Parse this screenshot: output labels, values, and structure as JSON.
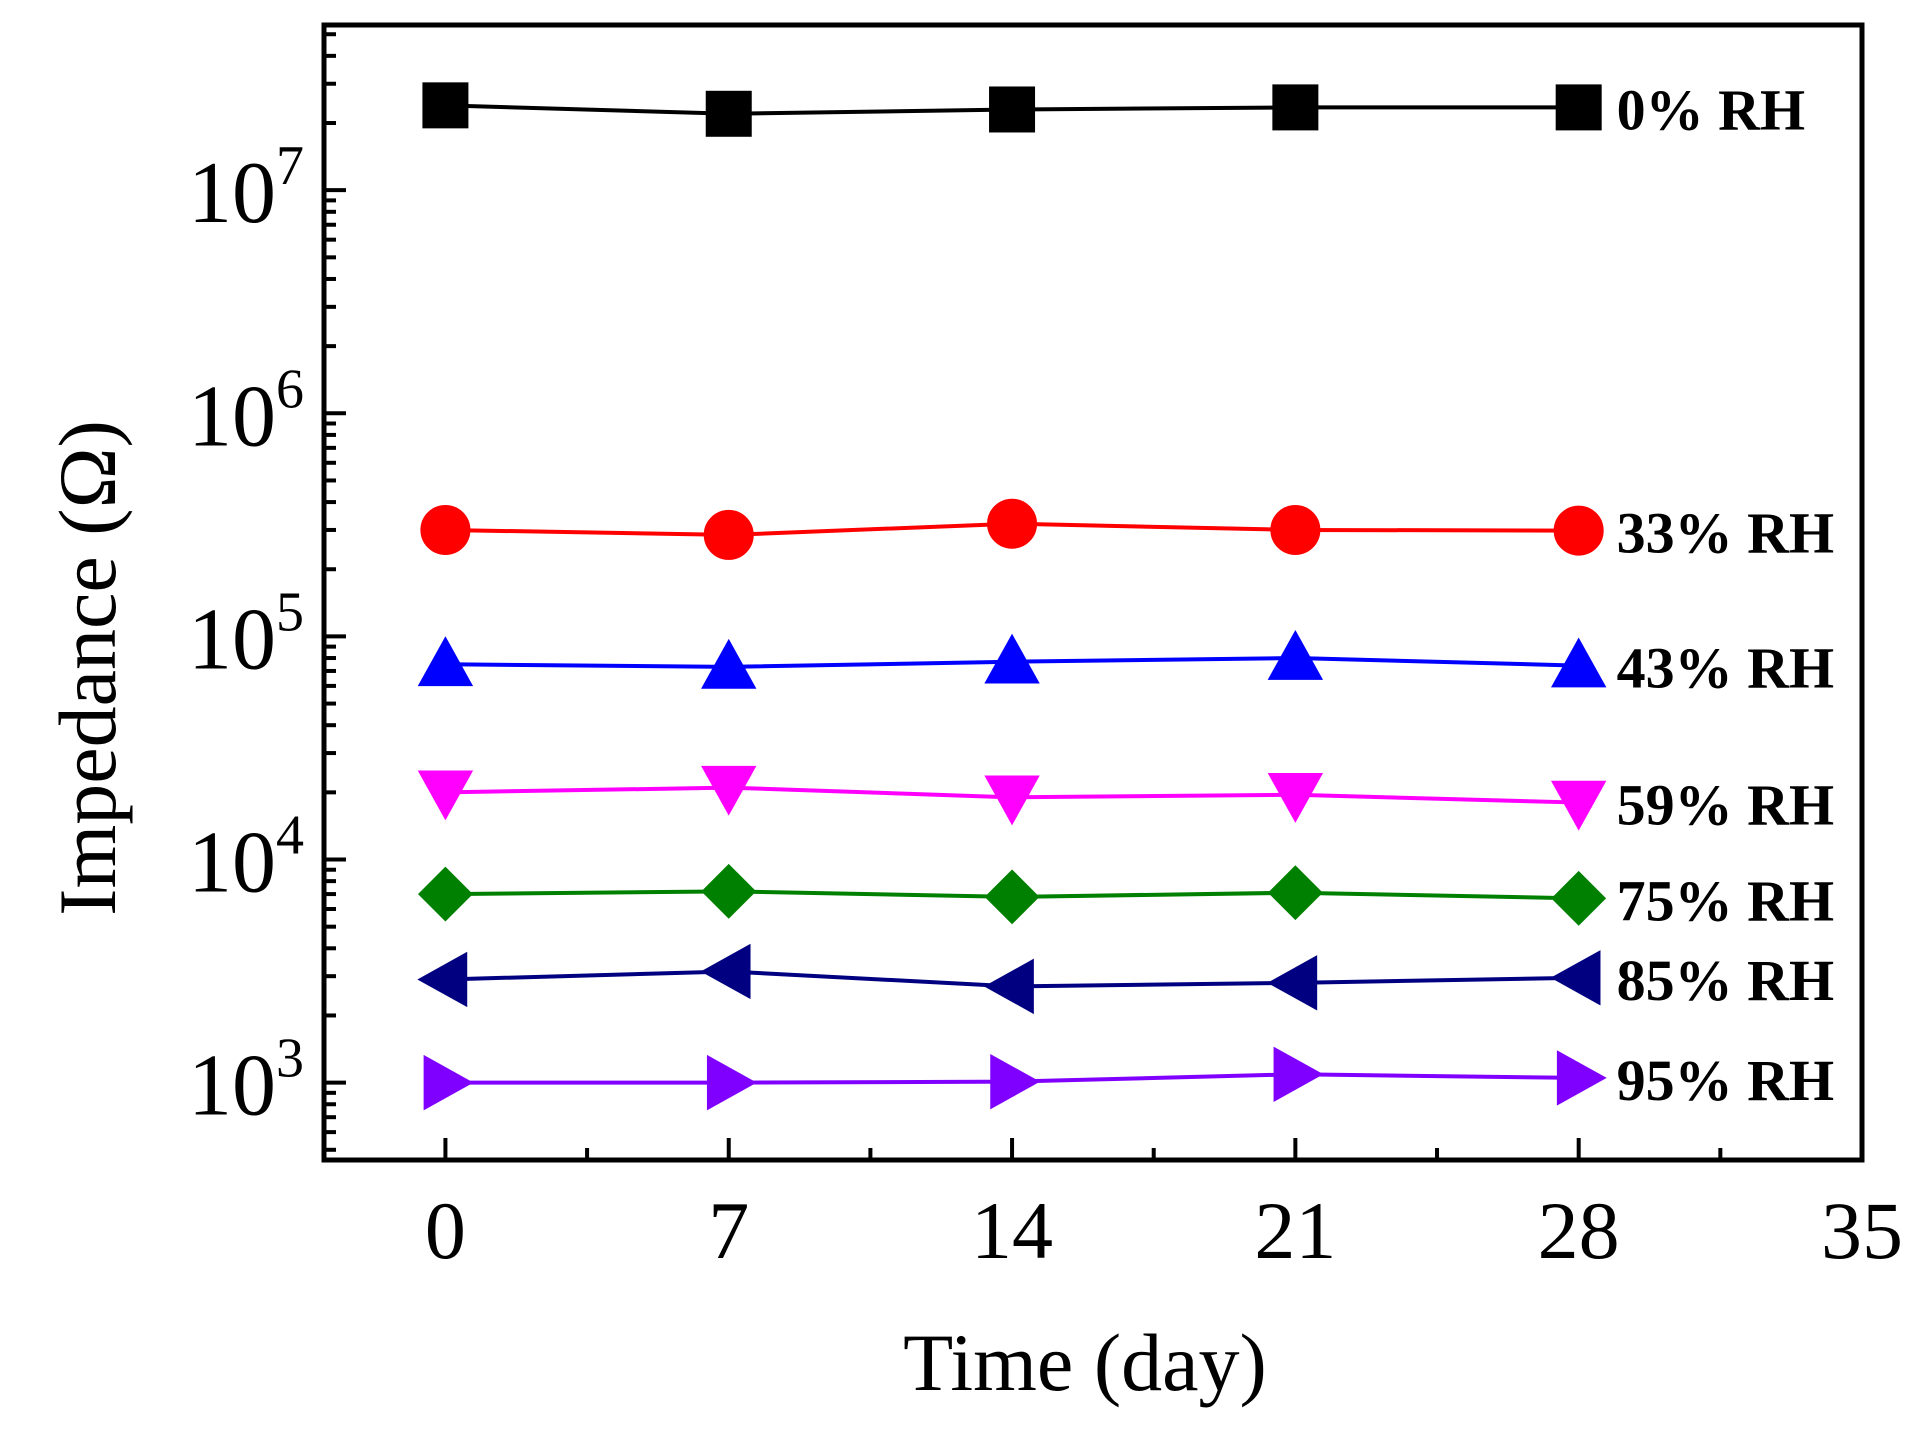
{
  "chart_data": {
    "type": "line",
    "title": "",
    "xlabel": "Time (day)",
    "ylabel": "Impedance (Ω)",
    "yscale": "log",
    "xlim": [
      -3,
      35
    ],
    "ylim": [
      450,
      55000000
    ],
    "x": [
      0,
      7,
      14,
      21,
      28
    ],
    "xticks": [
      0,
      7,
      14,
      21,
      28,
      35
    ],
    "xtick_labels": [
      "0",
      "7",
      "14",
      "21",
      "28",
      "35"
    ],
    "ytick_labels": [
      {
        "base": "10",
        "exp": "3",
        "value": 1000
      },
      {
        "base": "10",
        "exp": "4",
        "value": 10000
      },
      {
        "base": "10",
        "exp": "5",
        "value": 100000
      },
      {
        "base": "10",
        "exp": "6",
        "value": 1000000
      },
      {
        "base": "10",
        "exp": "7",
        "value": 10000000
      }
    ],
    "series": [
      {
        "name": "0% RH",
        "color": "#000000",
        "marker": "square",
        "values": [
          24000000,
          22000000,
          23000000,
          23500000,
          23500000
        ]
      },
      {
        "name": "33% RH",
        "color": "#ff0000",
        "marker": "circle",
        "values": [
          300000,
          285000,
          320000,
          300000,
          298000
        ]
      },
      {
        "name": "43% RH",
        "color": "#0000ff",
        "marker": "triangle-up",
        "values": [
          75000,
          73000,
          77000,
          80000,
          74000
        ]
      },
      {
        "name": "59% RH",
        "color": "#ff00ff",
        "marker": "triangle-down",
        "values": [
          20000,
          21000,
          19000,
          19500,
          18000
        ]
      },
      {
        "name": "75% RH",
        "color": "#008000",
        "marker": "diamond",
        "values": [
          7000,
          7200,
          6800,
          7100,
          6700
        ]
      },
      {
        "name": "85% RH",
        "color": "#000080",
        "marker": "triangle-left",
        "values": [
          2900,
          3150,
          2700,
          2800,
          2950
        ]
      },
      {
        "name": "95% RH",
        "color": "#8000ff",
        "marker": "triangle-right",
        "values": [
          1000,
          1000,
          1010,
          1090,
          1050
        ]
      }
    ]
  }
}
